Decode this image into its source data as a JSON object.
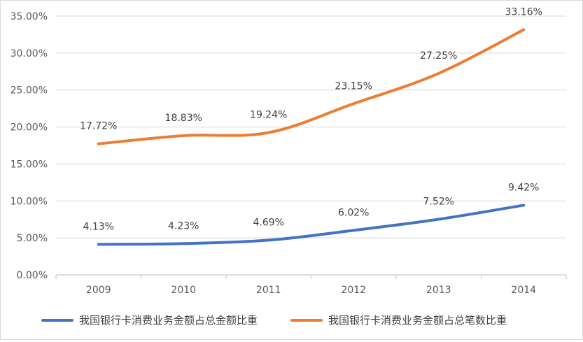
{
  "chart_data": {
    "type": "line",
    "title": "",
    "xlabel": "",
    "ylabel": "",
    "categories": [
      "2009",
      "2010",
      "2011",
      "2012",
      "2013",
      "2014"
    ],
    "ylim": [
      0,
      35
    ],
    "ytick_values": [
      0,
      5,
      10,
      15,
      20,
      25,
      30,
      35
    ],
    "ytick_labels": [
      "0.00%",
      "5.00%",
      "10.00%",
      "15.00%",
      "20.00%",
      "25.00%",
      "30.00%",
      "35.00%"
    ],
    "grid": true,
    "legend_position": "bottom",
    "series": [
      {
        "name": "我国银行卡消费业务金额占总金额比重",
        "values": [
          4.13,
          4.23,
          4.69,
          6.02,
          7.52,
          9.42
        ],
        "labels": [
          "4.13%",
          "4.23%",
          "4.69%",
          "6.02%",
          "7.52%",
          "9.42%"
        ],
        "color": "#4472c4"
      },
      {
        "name": "我国银行卡消费业务金额占总笔数比重",
        "values": [
          17.72,
          18.83,
          19.24,
          23.15,
          27.25,
          33.16
        ],
        "labels": [
          "17.72%",
          "18.83%",
          "19.24%",
          "23.15%",
          "27.25%",
          "33.16%"
        ],
        "color": "#ed7d31"
      }
    ]
  }
}
